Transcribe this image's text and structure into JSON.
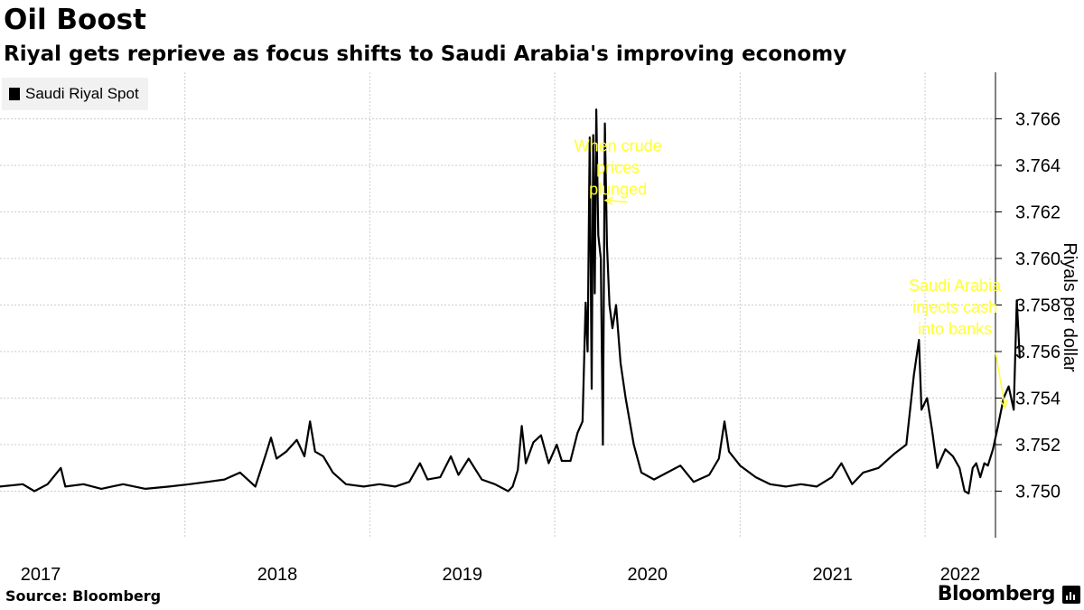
{
  "header": {
    "title": "Oil Boost",
    "subtitle": "Riyal gets reprieve as focus shifts to Saudi Arabia's improving economy"
  },
  "footer": {
    "source": "Source: Bloomberg",
    "brand": "Bloomberg"
  },
  "colors": {
    "line": "#000000",
    "grid": "#cccccc",
    "annotation": "#ffff33",
    "legend_bg": "#f1f1f1"
  },
  "chart_data": {
    "type": "line",
    "ylabel": "Riyals per dollar",
    "ylim": [
      3.748,
      3.768
    ],
    "yticks": [
      "3.750",
      "3.752",
      "3.754",
      "3.756",
      "3.758",
      "3.760",
      "3.762",
      "3.764",
      "3.766"
    ],
    "xlim": [
      "2017-01-01",
      "2022-05-20"
    ],
    "xticks": [
      "2017",
      "2018",
      "2019",
      "2020",
      "2021",
      "2022"
    ],
    "grid": true,
    "legend_position": "top-left",
    "series": [
      {
        "name": "Saudi Riyal Spot",
        "points": [
          [
            "2017-01-01",
            3.7502
          ],
          [
            "2017-02-15",
            3.7503
          ],
          [
            "2017-03-10",
            3.75
          ],
          [
            "2017-04-05",
            3.7503
          ],
          [
            "2017-05-01",
            3.751
          ],
          [
            "2017-05-10",
            3.7502
          ],
          [
            "2017-06-15",
            3.7503
          ],
          [
            "2017-07-20",
            3.7501
          ],
          [
            "2017-09-01",
            3.7503
          ],
          [
            "2017-10-15",
            3.7501
          ],
          [
            "2017-12-01",
            3.7502
          ],
          [
            "2018-01-10",
            3.7503
          ],
          [
            "2018-02-15",
            3.7504
          ],
          [
            "2018-03-20",
            3.7505
          ],
          [
            "2018-04-20",
            3.7508
          ],
          [
            "2018-05-20",
            3.7502
          ],
          [
            "2018-06-10",
            3.7516
          ],
          [
            "2018-06-20",
            3.7523
          ],
          [
            "2018-07-01",
            3.7514
          ],
          [
            "2018-07-20",
            3.7517
          ],
          [
            "2018-08-10",
            3.7522
          ],
          [
            "2018-08-25",
            3.7515
          ],
          [
            "2018-09-05",
            3.753
          ],
          [
            "2018-09-15",
            3.7517
          ],
          [
            "2018-10-01",
            3.7515
          ],
          [
            "2018-10-20",
            3.7508
          ],
          [
            "2018-11-15",
            3.7503
          ],
          [
            "2018-12-20",
            3.7502
          ],
          [
            "2019-01-20",
            3.7503
          ],
          [
            "2019-02-20",
            3.7502
          ],
          [
            "2019-03-20",
            3.7504
          ],
          [
            "2019-04-10",
            3.7512
          ],
          [
            "2019-04-25",
            3.7505
          ],
          [
            "2019-05-20",
            3.7506
          ],
          [
            "2019-06-10",
            3.7515
          ],
          [
            "2019-06-25",
            3.7507
          ],
          [
            "2019-07-15",
            3.7514
          ],
          [
            "2019-08-10",
            3.7505
          ],
          [
            "2019-09-05",
            3.7503
          ],
          [
            "2019-10-01",
            3.75
          ],
          [
            "2019-10-10",
            3.7502
          ],
          [
            "2019-10-20",
            3.7509
          ],
          [
            "2019-10-28",
            3.7528
          ],
          [
            "2019-11-05",
            3.7512
          ],
          [
            "2019-11-20",
            3.7521
          ],
          [
            "2019-12-05",
            3.7524
          ],
          [
            "2019-12-20",
            3.7512
          ],
          [
            "2020-01-05",
            3.752
          ],
          [
            "2020-01-15",
            3.7513
          ],
          [
            "2020-02-01",
            3.7513
          ],
          [
            "2020-02-15",
            3.7525
          ],
          [
            "2020-02-25",
            3.753
          ],
          [
            "2020-03-02",
            3.7581
          ],
          [
            "2020-03-06",
            3.756
          ],
          [
            "2020-03-10",
            3.7652
          ],
          [
            "2020-03-14",
            3.7544
          ],
          [
            "2020-03-17",
            3.7653
          ],
          [
            "2020-03-20",
            3.7585
          ],
          [
            "2020-03-23",
            3.7664
          ],
          [
            "2020-03-27",
            3.761
          ],
          [
            "2020-04-01",
            3.76
          ],
          [
            "2020-04-05",
            3.752
          ],
          [
            "2020-04-09",
            3.7658
          ],
          [
            "2020-04-13",
            3.7606
          ],
          [
            "2020-04-18",
            3.758
          ],
          [
            "2020-04-24",
            3.757
          ],
          [
            "2020-05-01",
            3.758
          ],
          [
            "2020-05-10",
            3.7555
          ],
          [
            "2020-05-20",
            3.754
          ],
          [
            "2020-06-05",
            3.752
          ],
          [
            "2020-06-20",
            3.7508
          ],
          [
            "2020-07-15",
            3.7505
          ],
          [
            "2020-08-10",
            3.7508
          ],
          [
            "2020-09-05",
            3.7511
          ],
          [
            "2020-10-01",
            3.7504
          ],
          [
            "2020-11-01",
            3.7507
          ],
          [
            "2020-11-20",
            3.7514
          ],
          [
            "2020-12-01",
            3.753
          ],
          [
            "2020-12-10",
            3.7517
          ],
          [
            "2021-01-01",
            3.7511
          ],
          [
            "2021-02-01",
            3.7506
          ],
          [
            "2021-03-01",
            3.7503
          ],
          [
            "2021-04-01",
            3.7502
          ],
          [
            "2021-05-01",
            3.7503
          ],
          [
            "2021-06-01",
            3.7502
          ],
          [
            "2021-07-01",
            3.7506
          ],
          [
            "2021-07-20",
            3.7512
          ],
          [
            "2021-08-10",
            3.7503
          ],
          [
            "2021-09-01",
            3.7508
          ],
          [
            "2021-10-01",
            3.751
          ],
          [
            "2021-11-01",
            3.7516
          ],
          [
            "2021-11-25",
            3.752
          ],
          [
            "2021-12-10",
            3.755
          ],
          [
            "2021-12-20",
            3.7565
          ],
          [
            "2021-12-25",
            3.7535
          ],
          [
            "2022-01-05",
            3.754
          ],
          [
            "2022-01-15",
            3.7526
          ],
          [
            "2022-01-25",
            3.751
          ],
          [
            "2022-02-10",
            3.7518
          ],
          [
            "2022-02-25",
            3.7515
          ],
          [
            "2022-03-10",
            3.751
          ],
          [
            "2022-03-20",
            3.75
          ],
          [
            "2022-03-28",
            3.7499
          ],
          [
            "2022-04-05",
            3.751
          ],
          [
            "2022-04-12",
            3.7512
          ],
          [
            "2022-04-20",
            3.7506
          ],
          [
            "2022-04-28",
            3.7512
          ],
          [
            "2022-05-05",
            3.7511
          ],
          [
            "2022-05-15",
            3.7518
          ],
          [
            "2022-05-25",
            3.7528
          ],
          [
            "2022-06-05",
            3.754
          ],
          [
            "2022-06-15",
            3.7545
          ],
          [
            "2022-06-25",
            3.7535
          ],
          [
            "2022-07-01",
            3.7582
          ],
          [
            "2022-07-04",
            3.757
          ],
          [
            "2022-07-07",
            3.7557
          ]
        ]
      }
    ],
    "annotations": [
      {
        "text": [
          "When crude",
          "prices",
          "plunged"
        ],
        "anchor": [
          "2020-04-10",
          3.7625
        ],
        "text_at": [
          "2020-05-05",
          3.7646
        ]
      },
      {
        "text": [
          "Saudi Arabia",
          "injects cash",
          "into banks"
        ],
        "anchor": [
          "2022-06-08",
          3.7536
        ],
        "text_at": [
          "2022-03-01",
          3.7586
        ]
      }
    ]
  }
}
